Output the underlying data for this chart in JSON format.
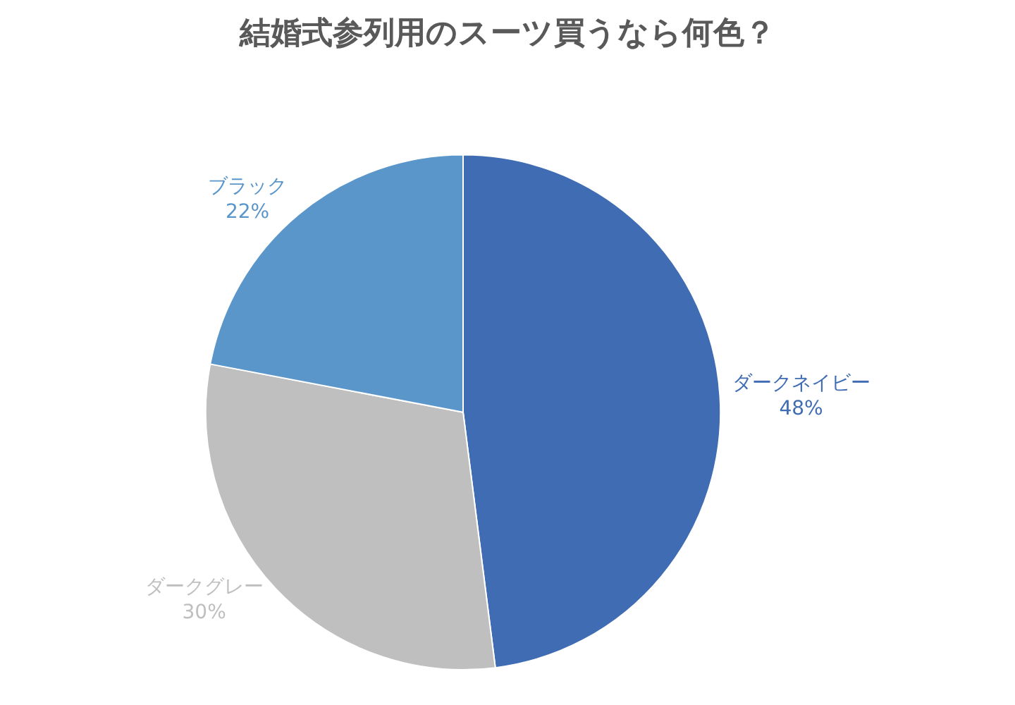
{
  "chart_data": {
    "type": "pie",
    "title": "結婚式参列用のスーツ買うなら何色？",
    "categories": [
      "ダークネイビー",
      "ダークグレー",
      "ブラック"
    ],
    "values": [
      48,
      30,
      22
    ],
    "value_labels": [
      "48%",
      "30%",
      "22%"
    ],
    "colors": [
      "#3f6cb3",
      "#bfbfbf",
      "#5b96ca"
    ],
    "legend": false
  }
}
